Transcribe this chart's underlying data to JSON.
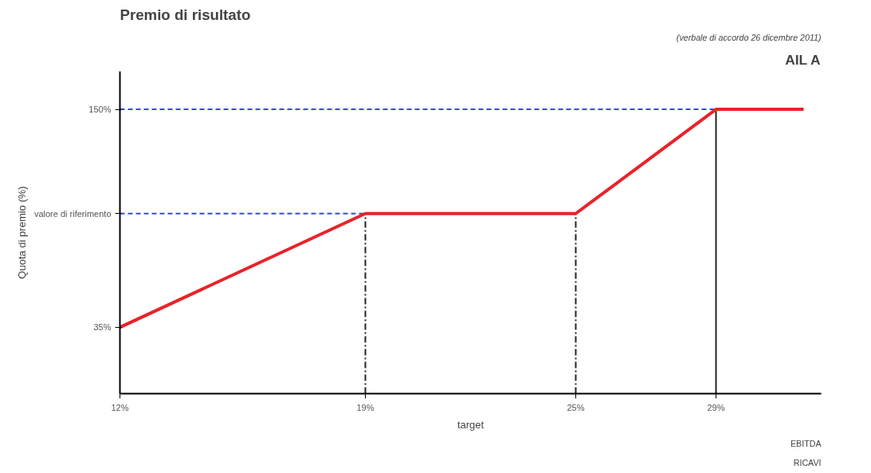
{
  "chart_data": {
    "type": "line",
    "title": "Premio di risultato",
    "ylabel": "Quota di premio (%)",
    "xlabel": "target",
    "annotations": [
      "AIL A",
      "(verbale di accordo 26 dicembre 2011)",
      "EBITDA",
      "RICAVI"
    ],
    "x": [
      12,
      19,
      25,
      29,
      31.5
    ],
    "series": [
      {
        "color": "#e8232a",
        "values": [
          35,
          95,
          95,
          150,
          150
        ]
      }
    ],
    "xlim": [
      12,
      32
    ],
    "xticks": [
      {
        "value": 12,
        "label": "12%"
      },
      {
        "value": 19,
        "label": "19%"
      },
      {
        "value": 25,
        "label": "25%"
      },
      {
        "value": 29,
        "label": "29%"
      }
    ],
    "ylim": [
      0,
      170
    ],
    "yticks": [
      {
        "value": 35,
        "label": "35%"
      },
      {
        "value": 95,
        "label": "valore di riferimento"
      },
      {
        "value": 150,
        "label": "150%"
      }
    ],
    "ref_lines": [
      {
        "axis": "y",
        "value": 150,
        "color": "#2f4fd8",
        "line_style": "dashed"
      },
      {
        "axis": "y",
        "value": 95,
        "color": "#2f4fd8",
        "line_style": "dashed"
      },
      {
        "axis": "x",
        "value": 19,
        "color": "#222222",
        "line_style": "dashdot"
      },
      {
        "axis": "x",
        "value": 25,
        "color": "#222222",
        "line_style": "dashdot"
      },
      {
        "axis": "x",
        "value": 29,
        "color": "#222222",
        "line_style": "solid"
      }
    ],
    "grid": false,
    "marker": "none",
    "line_style": "solid"
  }
}
